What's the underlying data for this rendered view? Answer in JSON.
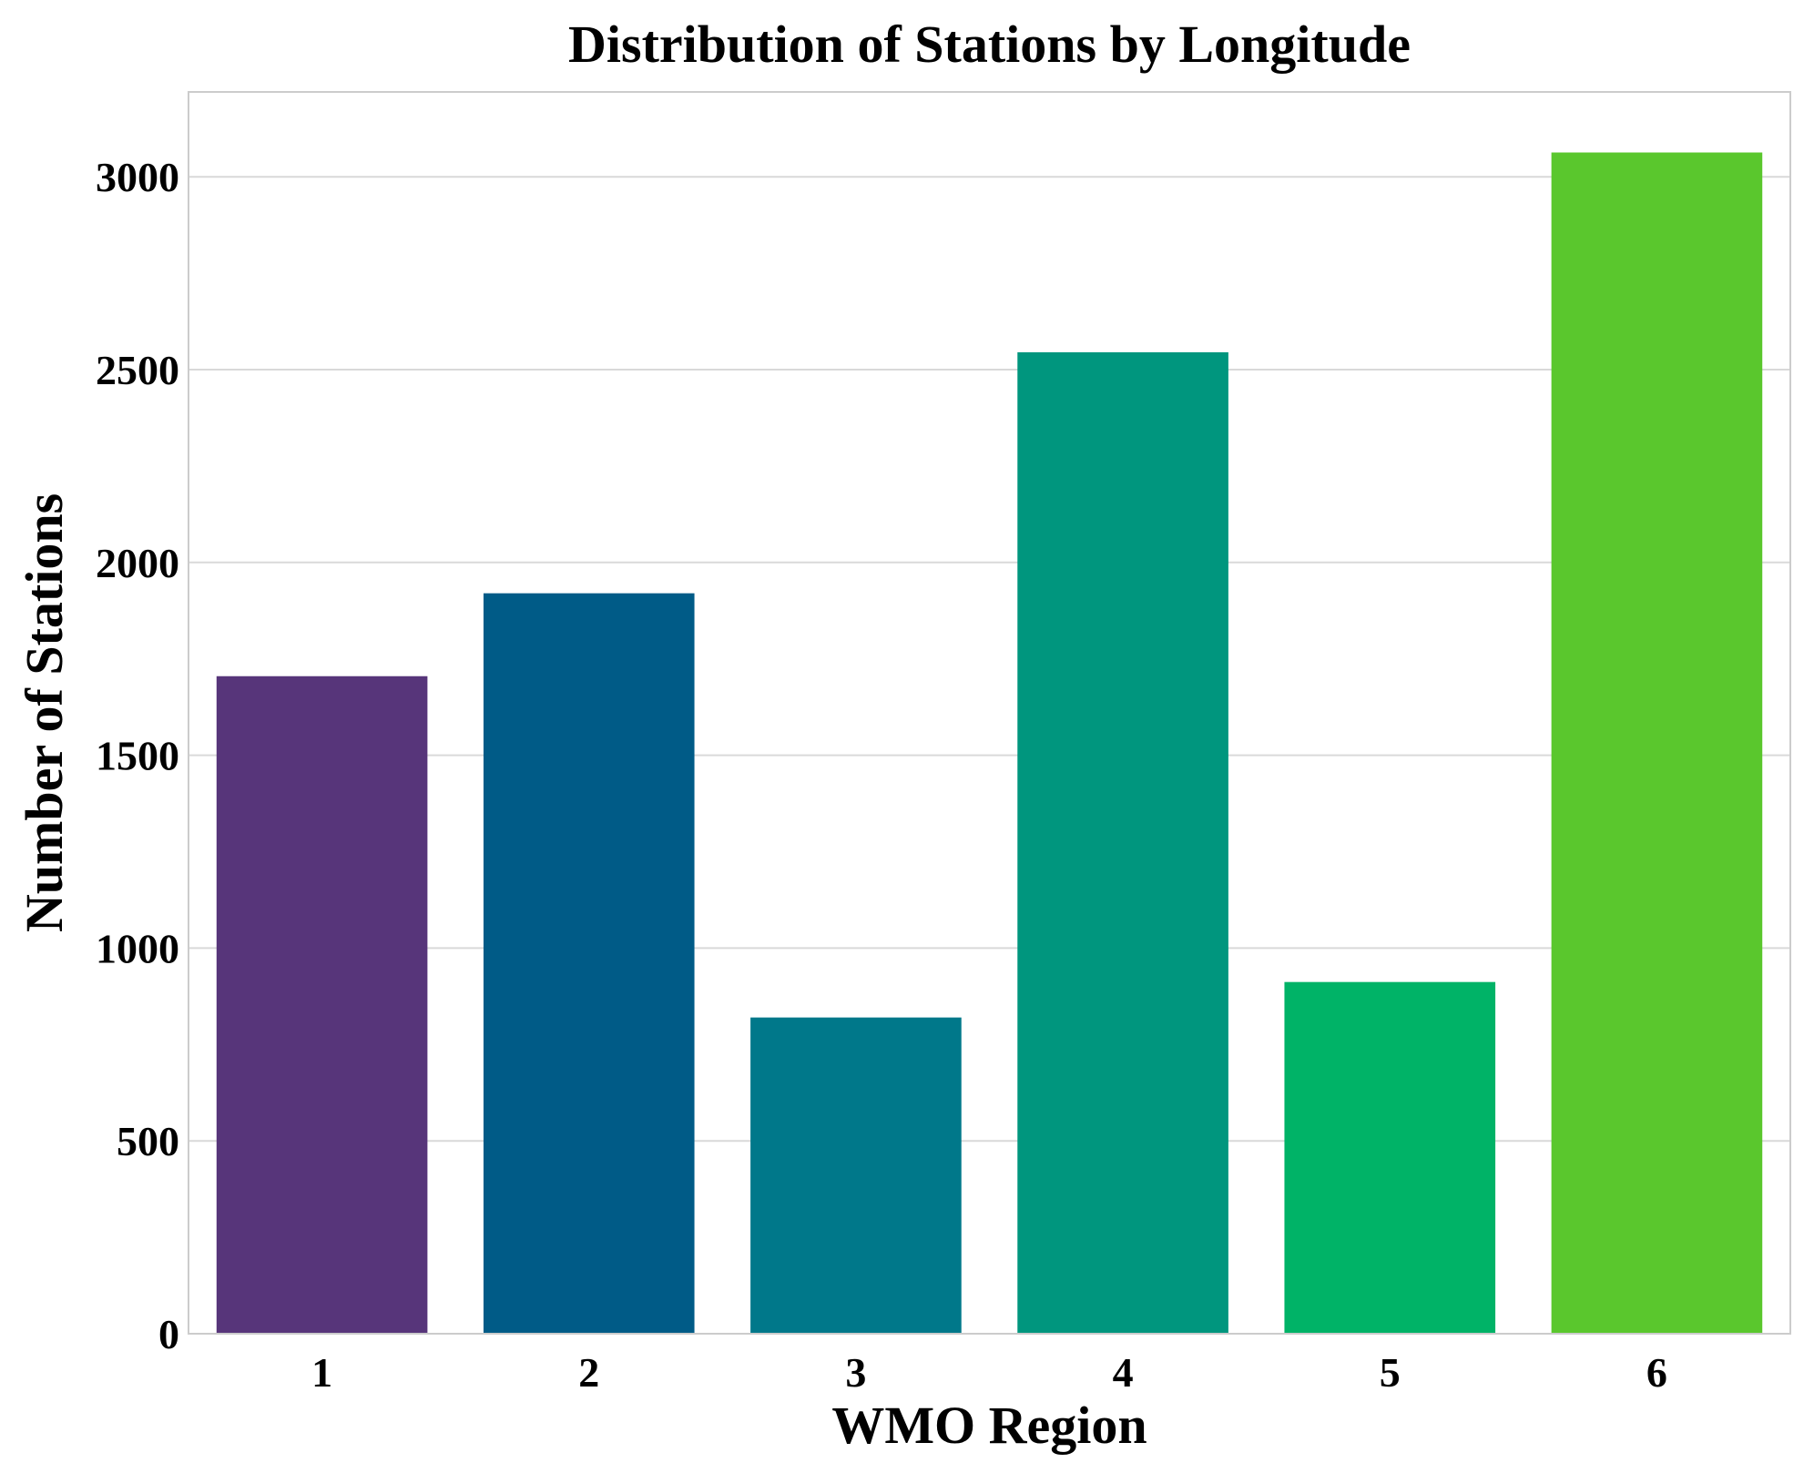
{
  "chart_data": {
    "type": "bar",
    "title": "Distribution of Stations by Longitude",
    "xlabel": "WMO Region",
    "ylabel": "Number of Stations",
    "categories": [
      "1",
      "2",
      "3",
      "4",
      "5",
      "6"
    ],
    "values": [
      1705,
      1920,
      820,
      2545,
      912,
      3063
    ],
    "colors": [
      "#57357a",
      "#005b87",
      "#00788a",
      "#00967e",
      "#00b367",
      "#5ac72d"
    ],
    "ylim": [
      0,
      3220
    ],
    "yticks": [
      0,
      500,
      1000,
      1500,
      2000,
      2500,
      3000
    ],
    "grid": true,
    "colors_meta": {
      "gridline": "#d9d9d9",
      "frame": "#cccccc",
      "text": "#000000"
    }
  }
}
